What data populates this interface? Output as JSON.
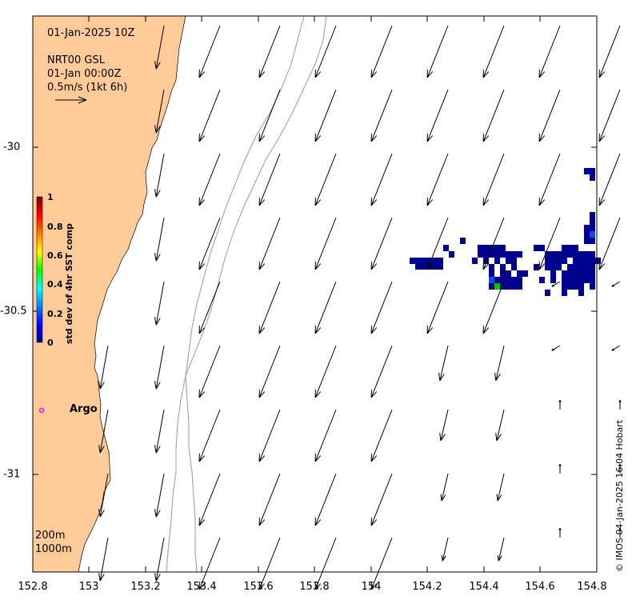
{
  "header": {
    "time": "01-Jan-2025 10Z",
    "product": "NRT00 GSL",
    "product_time": "01-Jan 00:00Z",
    "scale_label": "0.5m/s (1kt 6h)"
  },
  "x_ticks": [
    "152.8",
    "153",
    "153.2",
    "153.4",
    "153.6",
    "153.8",
    "154",
    "154.2",
    "154.4",
    "154.6",
    "154.8"
  ],
  "y_ticks": [
    "-30",
    "-30.5",
    "-31"
  ],
  "colorbar": {
    "title": "std dev of 4hr SST comp",
    "ticks": [
      "1",
      "0.8",
      "0.6",
      "0.4",
      "0.2",
      "0"
    ]
  },
  "argo_label": "Argo",
  "isobaths": [
    "200m",
    "1000m"
  ],
  "credit": "© IMOS 04-Jan-2025 16:04 Hobart",
  "colors": {
    "land": "#ffcc99",
    "marker": "#ff00ff",
    "sst_low": "#00008f",
    "sst_mid": "#0050ff",
    "sst_hi": "#00c000"
  },
  "map_data": {
    "lon_range": [
      152.8,
      154.8
    ],
    "lat_range": [
      -31.3,
      -29.59
    ],
    "argo": {
      "lon": 152.83,
      "lat": -30.81
    }
  }
}
